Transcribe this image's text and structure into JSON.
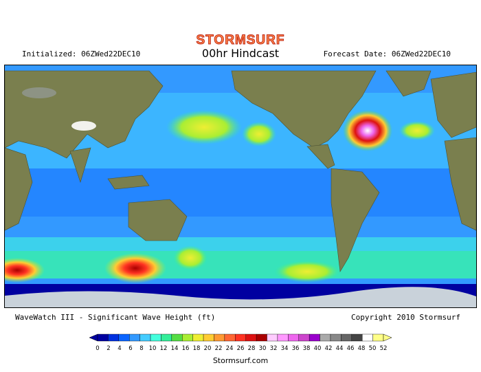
{
  "brand": "STORMSURF",
  "header": {
    "initialized": "Initialized: 06ZWed22DEC10",
    "title": "00hr Hindcast",
    "forecast_date": "Forecast Date: 06ZWed22DEC10"
  },
  "caption": {
    "model": "WaveWatch III - Significant Wave Height (ft)",
    "copyright": "Copyright 2010 Stormsurf"
  },
  "legend": {
    "ticks": [
      "0",
      "2",
      "4",
      "6",
      "8",
      "10",
      "12",
      "14",
      "16",
      "18",
      "20",
      "22",
      "24",
      "26",
      "28",
      "30",
      "32",
      "34",
      "36",
      "38",
      "40",
      "42",
      "44",
      "46",
      "48",
      "50",
      "52"
    ],
    "colors": [
      "#0000a0",
      "#0030e0",
      "#0a64ff",
      "#3399ff",
      "#44ccff",
      "#44ffdd",
      "#33ee99",
      "#55dd44",
      "#aaee33",
      "#eeee33",
      "#ffcc33",
      "#ff9933",
      "#ff6633",
      "#ff3322",
      "#dd1111",
      "#aa0000",
      "#ffccff",
      "#ff99ff",
      "#ee66ee",
      "#cc44cc",
      "#9900cc",
      "#aaaaaa",
      "#888888",
      "#666666",
      "#444444",
      "#ffffff",
      "#ffff88"
    ]
  },
  "footer": "Stormsurf.com"
}
